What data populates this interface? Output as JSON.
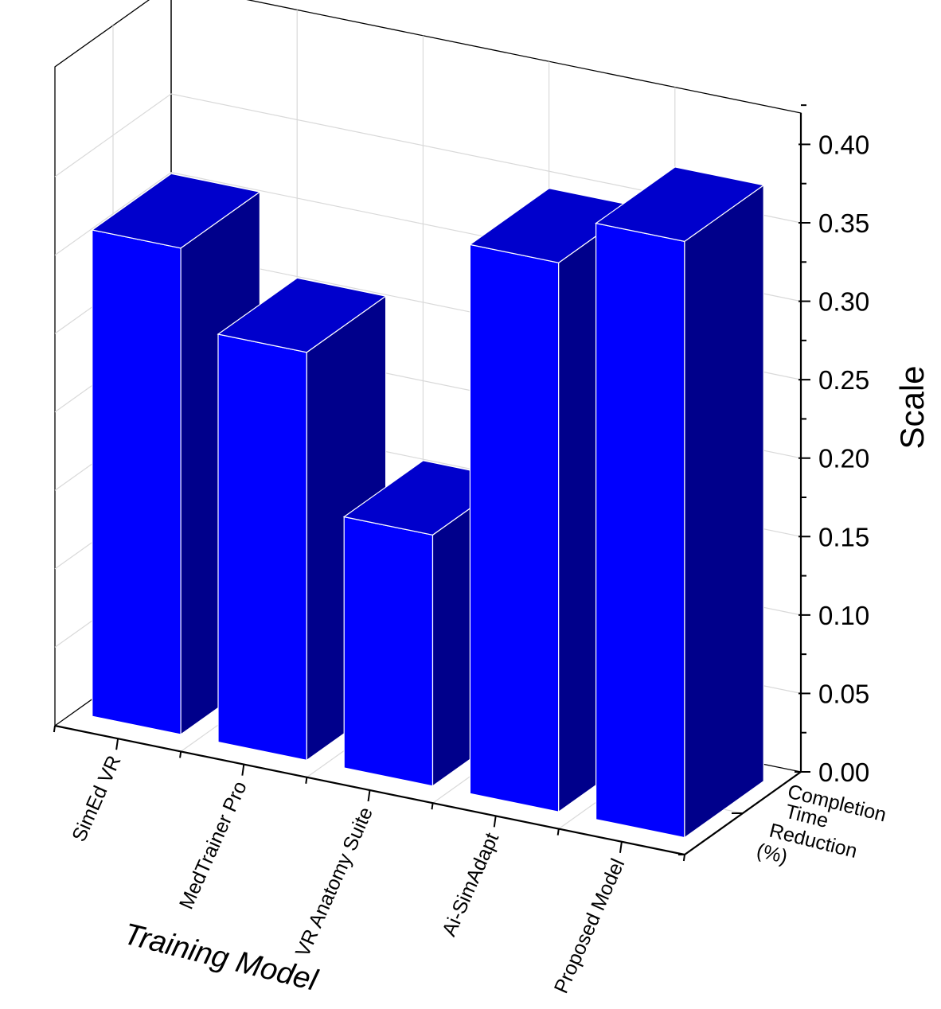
{
  "chart_data": {
    "type": "bar",
    "categories": [
      "SimEd VR",
      "MedTrainer Pro",
      "VR Anatomy Suite",
      "Ai-SimAdapt",
      "Proposed Model"
    ],
    "series": [
      {
        "name": "Completion Time Reduction (%)",
        "values": [
          0.31,
          0.26,
          0.16,
          0.35,
          0.38
        ]
      }
    ],
    "series_label_lines": [
      "Completion",
      "Time",
      "Reduction",
      "(%)"
    ],
    "xlabel": "Training Model",
    "ylabel": "Scale",
    "ylim": [
      0,
      0.42
    ],
    "yticks": [
      0.0,
      0.05,
      0.1,
      0.15,
      0.2,
      0.25,
      0.3,
      0.35,
      0.4
    ],
    "ytick_labels": [
      "0.00",
      "0.05",
      "0.10",
      "0.15",
      "0.20",
      "0.25",
      "0.30",
      "0.35",
      "0.40"
    ],
    "grid": true,
    "projection": "3d",
    "colors": {
      "front": "#0000ff",
      "top": "#0000cc",
      "side": "#00008b",
      "edge": "#ffffff",
      "grid": "#d9d9d9",
      "axis": "#000000"
    }
  }
}
